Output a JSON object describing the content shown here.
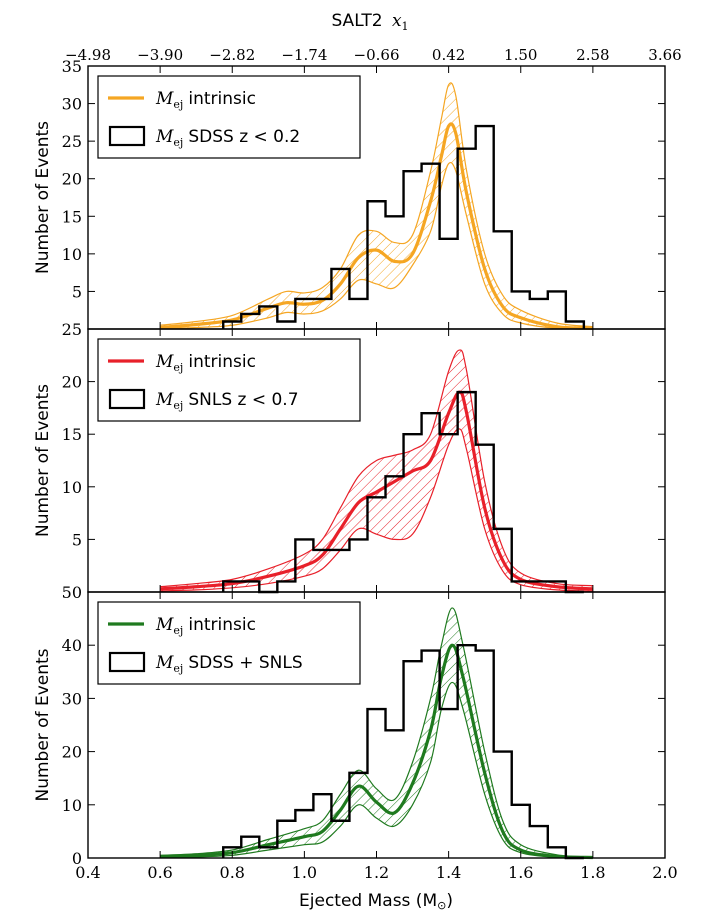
{
  "figure": {
    "top_axis_label_text": "SALT2",
    "top_axis_label_var": "x",
    "top_axis_label_sub": "1",
    "xlabel_text": "Ejected Mass (M",
    "xlabel_sun": "⊙",
    "xlabel_close": ")"
  },
  "chart_data": [
    {
      "type": "area",
      "panel": "SDSS",
      "color": "#f5a623",
      "ylabel": "Number of Events",
      "ylim": [
        0,
        35
      ],
      "yticks": [
        "5",
        "10",
        "15",
        "20",
        "25",
        "30",
        "35"
      ],
      "xlim": [
        0.4,
        2.0
      ],
      "xticks": [],
      "top_xticks": [
        "−4.98",
        "−3.90",
        "−2.82",
        "−1.74",
        "−0.66",
        "0.42",
        "1.50",
        "2.58",
        "3.66"
      ],
      "grid": false,
      "legend_position": "upper-left",
      "legend": [
        {
          "kind": "line",
          "var": "M",
          "sub": "ej",
          "text": "intrinsic"
        },
        {
          "kind": "step",
          "var": "M",
          "sub": "ej",
          "text": "SDSS z < 0.2"
        }
      ],
      "histogram": {
        "name": "SDSS z < 0.2",
        "bin_edges": [
          0.775,
          0.825,
          0.875,
          0.925,
          0.975,
          1.025,
          1.075,
          1.125,
          1.175,
          1.225,
          1.275,
          1.325,
          1.375,
          1.425,
          1.475,
          1.525,
          1.575,
          1.625,
          1.675,
          1.725
        ],
        "counts": [
          1,
          2,
          3,
          1,
          4,
          4,
          8,
          4,
          17,
          15,
          21,
          22,
          12,
          24,
          27,
          13,
          5,
          4,
          5,
          1
        ]
      },
      "intrinsic": {
        "name": "intrinsic",
        "x": [
          0.6,
          0.7,
          0.8,
          0.9,
          0.95,
          1.0,
          1.05,
          1.1,
          1.15,
          1.2,
          1.25,
          1.3,
          1.35,
          1.38,
          1.4,
          1.42,
          1.45,
          1.5,
          1.55,
          1.6,
          1.7,
          1.8
        ],
        "mean": [
          0.2,
          0.6,
          1.2,
          2.8,
          3.5,
          3.3,
          3.8,
          6.0,
          9.5,
          10.5,
          9.0,
          10.0,
          17.0,
          23.0,
          27.0,
          26.0,
          18.0,
          8.0,
          3.0,
          1.5,
          0.3,
          0.1
        ],
        "upper": [
          0.5,
          1.0,
          1.8,
          4.0,
          5.0,
          4.8,
          5.5,
          8.0,
          12.5,
          13.0,
          11.5,
          12.5,
          21.0,
          28.0,
          32.5,
          31.0,
          21.0,
          10.0,
          4.5,
          2.5,
          0.8,
          0.3
        ],
        "lower": [
          0.05,
          0.2,
          0.5,
          1.5,
          2.2,
          2.0,
          2.4,
          4.0,
          6.5,
          6.0,
          5.5,
          8.5,
          13.0,
          19.0,
          22.0,
          21.0,
          15.0,
          6.0,
          2.0,
          0.8,
          0.1,
          0.0
        ]
      }
    },
    {
      "type": "area",
      "panel": "SNLS",
      "color": "#e8202a",
      "ylabel": "Number of Events",
      "ylim": [
        0,
        25
      ],
      "yticks": [
        "5",
        "10",
        "15",
        "20",
        "25"
      ],
      "xlim": [
        0.4,
        2.0
      ],
      "xticks": [],
      "grid": false,
      "legend_position": "upper-left",
      "legend": [
        {
          "kind": "line",
          "var": "M",
          "sub": "ej",
          "text": "intrinsic"
        },
        {
          "kind": "step",
          "var": "M",
          "sub": "ej",
          "text": "SNLS z < 0.7"
        }
      ],
      "histogram": {
        "name": "SNLS z < 0.7",
        "bin_edges": [
          0.775,
          0.825,
          0.875,
          0.925,
          0.975,
          1.025,
          1.075,
          1.125,
          1.175,
          1.225,
          1.275,
          1.325,
          1.375,
          1.425,
          1.475,
          1.525,
          1.575,
          1.625,
          1.675,
          1.725
        ],
        "counts": [
          1,
          1,
          0,
          1,
          5,
          4,
          4,
          5,
          9,
          11,
          15,
          17,
          15,
          19,
          14,
          6,
          1,
          1,
          1,
          0
        ]
      },
      "intrinsic": {
        "name": "intrinsic",
        "x": [
          0.6,
          0.7,
          0.8,
          0.9,
          1.0,
          1.05,
          1.1,
          1.15,
          1.2,
          1.25,
          1.3,
          1.35,
          1.4,
          1.43,
          1.45,
          1.5,
          1.55,
          1.6,
          1.7,
          1.8
        ],
        "mean": [
          0.3,
          0.5,
          0.8,
          1.5,
          2.5,
          3.5,
          6.0,
          8.5,
          9.5,
          10.5,
          11.5,
          12.5,
          17.0,
          19.0,
          17.0,
          8.0,
          3.0,
          1.2,
          0.5,
          0.3
        ],
        "upper": [
          0.5,
          0.8,
          1.2,
          2.2,
          3.6,
          5.0,
          8.0,
          11.0,
          12.5,
          13.0,
          13.5,
          15.0,
          21.0,
          23.0,
          21.0,
          10.5,
          4.2,
          1.8,
          0.8,
          0.6
        ],
        "lower": [
          0.1,
          0.2,
          0.4,
          0.8,
          1.5,
          2.2,
          4.0,
          6.0,
          5.5,
          5.0,
          5.5,
          9.0,
          14.0,
          15.5,
          13.5,
          6.0,
          2.0,
          0.7,
          0.2,
          0.1
        ]
      }
    },
    {
      "type": "area",
      "panel": "SDSS + SNLS",
      "color": "#1f7a1f",
      "ylabel": "Number of Events",
      "xlabel": "Ejected Mass (M⊙)",
      "ylim": [
        0,
        50
      ],
      "yticks": [
        "0",
        "10",
        "20",
        "30",
        "40",
        "50"
      ],
      "xlim": [
        0.4,
        2.0
      ],
      "xticks": [
        "0.4",
        "0.6",
        "0.8",
        "1.0",
        "1.2",
        "1.4",
        "1.6",
        "1.8",
        "2.0"
      ],
      "grid": false,
      "legend_position": "upper-left",
      "legend": [
        {
          "kind": "line",
          "var": "M",
          "sub": "ej",
          "text": "intrinsic"
        },
        {
          "kind": "step",
          "var": "M",
          "sub": "ej",
          "text": "SDSS + SNLS"
        }
      ],
      "histogram": {
        "name": "SDSS + SNLS",
        "bin_edges": [
          0.775,
          0.825,
          0.875,
          0.925,
          0.975,
          1.025,
          1.075,
          1.125,
          1.175,
          1.225,
          1.275,
          1.325,
          1.375,
          1.425,
          1.475,
          1.525,
          1.575,
          1.625,
          1.675,
          1.725
        ],
        "counts": [
          2,
          4,
          2,
          7,
          9,
          12,
          7,
          16,
          28,
          24,
          37,
          39,
          28,
          40,
          39,
          20,
          10,
          6,
          2,
          0
        ]
      },
      "intrinsic": {
        "name": "intrinsic",
        "x": [
          0.6,
          0.7,
          0.8,
          0.9,
          1.0,
          1.05,
          1.1,
          1.15,
          1.2,
          1.25,
          1.3,
          1.35,
          1.38,
          1.41,
          1.44,
          1.5,
          1.55,
          1.6,
          1.7,
          1.8
        ],
        "mean": [
          0.3,
          0.5,
          1.0,
          2.5,
          4.0,
          5.0,
          9.0,
          13.5,
          10.5,
          8.5,
          14.0,
          24.0,
          34.0,
          40.0,
          34.0,
          16.0,
          5.0,
          1.5,
          0.3,
          0.1
        ],
        "upper": [
          0.5,
          0.8,
          1.5,
          3.5,
          5.5,
          7.0,
          12.0,
          16.5,
          13.0,
          11.0,
          18.0,
          30.0,
          40.0,
          47.0,
          40.0,
          20.0,
          7.0,
          2.5,
          0.6,
          0.2
        ],
        "lower": [
          0.1,
          0.2,
          0.5,
          1.5,
          2.5,
          3.0,
          6.0,
          10.0,
          7.5,
          6.0,
          10.0,
          18.0,
          28.0,
          33.0,
          28.0,
          12.0,
          3.5,
          1.0,
          0.1,
          0.0
        ]
      }
    }
  ]
}
